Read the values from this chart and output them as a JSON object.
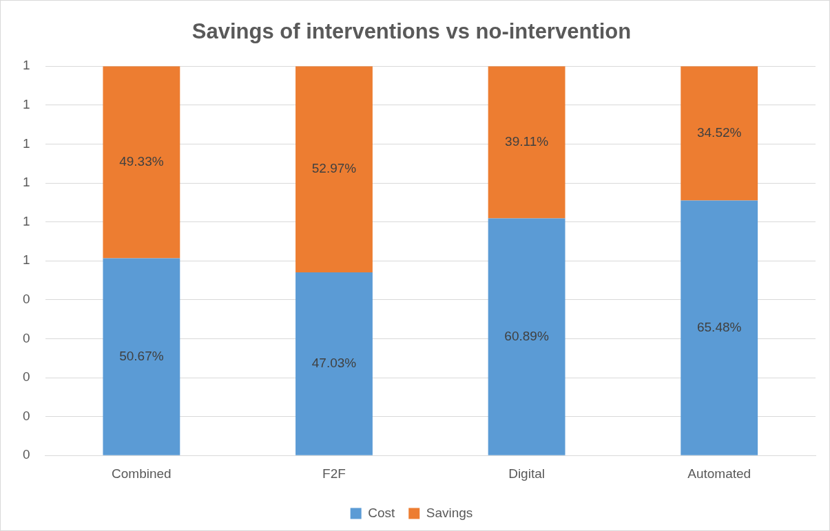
{
  "chart_data": {
    "type": "bar",
    "title": "Savings of interventions vs no-intervention",
    "categories": [
      "Combined",
      "F2F",
      "Digital",
      "Automated"
    ],
    "stacked": true,
    "series": [
      {
        "name": "Cost",
        "color": "#5b9bd5",
        "values": [
          0.5067,
          0.4703,
          0.6089,
          0.6548
        ],
        "value_labels": [
          "50.67%",
          "47.03%",
          "60.89%",
          "65.48%"
        ]
      },
      {
        "name": "Savings",
        "color": "#ed7d31",
        "values": [
          0.4933,
          0.5297,
          0.3911,
          0.3452
        ],
        "value_labels": [
          "49.33%",
          "52.97%",
          "39.11%",
          "34.52%"
        ]
      }
    ],
    "ylim": [
      0,
      1
    ],
    "yticks": [
      0,
      {
        "value": 0.1,
        "label": "0"
      },
      {
        "value": 0.2,
        "label": "0"
      },
      {
        "value": 0.3,
        "label": "0"
      },
      {
        "value": 0.4,
        "label": "0"
      },
      {
        "value": 0.5,
        "label": "1"
      },
      {
        "value": 0.6,
        "label": "1"
      },
      {
        "value": 0.7,
        "label": "1"
      },
      {
        "value": 0.8,
        "label": "1"
      },
      {
        "value": 0.9,
        "label": "1"
      },
      1
    ],
    "grid": "y",
    "legend": "bottom"
  }
}
